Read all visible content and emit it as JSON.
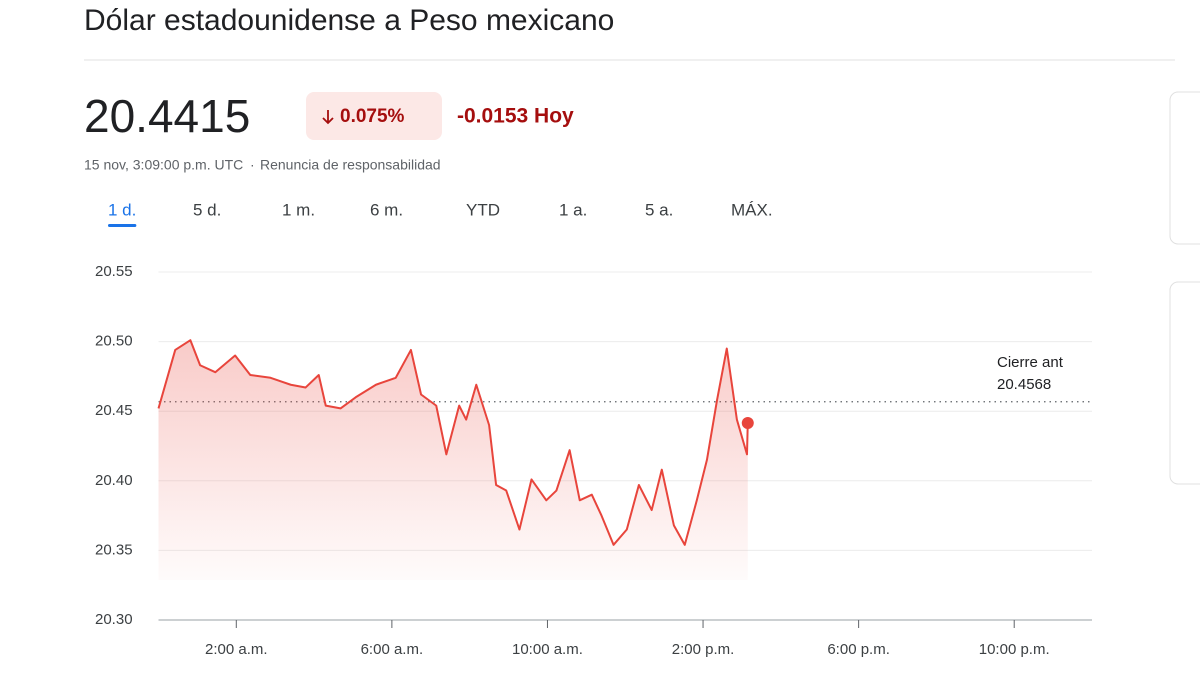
{
  "header": {
    "title": "Dólar estadounidense a Peso mexicano"
  },
  "quote": {
    "price": "20.4415",
    "change_percent": "0.075%",
    "change": "-0.0153 Hoy",
    "timestamp": "15 nov, 3:09:00 p.m. UTC",
    "disclaimer": "Renuncia de responsabilidad"
  },
  "ranges": {
    "items": [
      "1 d.",
      "5 d.",
      "1 m.",
      "6 m.",
      "YTD",
      "1 a.",
      "5 a.",
      "MÁX."
    ],
    "selected": 0
  },
  "chart_data": {
    "type": "line",
    "color": "#e8453c",
    "x": [
      0,
      0.43,
      0.82,
      1.07,
      1.46,
      1.97,
      2.36,
      2.88,
      3.4,
      3.78,
      4.12,
      4.3,
      4.68,
      5.07,
      5.59,
      6.1,
      6.49,
      6.75,
      7.14,
      7.4,
      7.73,
      7.91,
      8.17,
      8.5,
      8.68,
      8.94,
      9.28,
      9.59,
      9.97,
      10.23,
      10.57,
      10.83,
      11.14,
      11.39,
      11.7,
      12.04,
      12.35,
      12.68,
      12.94,
      13.25,
      13.53,
      13.84,
      14.1,
      14.36,
      14.61,
      14.87,
      15.13,
      15.15
    ],
    "values": [
      20.452,
      20.494,
      20.501,
      20.483,
      20.478,
      20.49,
      20.476,
      20.474,
      20.469,
      20.467,
      20.476,
      20.454,
      20.452,
      20.46,
      20.469,
      20.474,
      20.494,
      20.462,
      20.454,
      20.419,
      20.454,
      20.444,
      20.469,
      20.44,
      20.397,
      20.393,
      20.365,
      20.401,
      20.386,
      20.393,
      20.422,
      20.386,
      20.39,
      20.375,
      20.354,
      20.365,
      20.397,
      20.379,
      20.408,
      20.368,
      20.354,
      20.386,
      20.415,
      20.458,
      20.495,
      20.444,
      20.419,
      20.4415
    ],
    "xlim": [
      0,
      24
    ],
    "ylim": [
      20.3,
      20.55
    ],
    "xticks": [
      {
        "value": 2,
        "label": "2:00 a.m."
      },
      {
        "value": 6,
        "label": "6:00 a.m."
      },
      {
        "value": 10,
        "label": "10:00 a.m."
      },
      {
        "value": 14,
        "label": "2:00 p.m."
      },
      {
        "value": 18,
        "label": "6:00 p.m."
      },
      {
        "value": 22,
        "label": "10:00 p.m."
      }
    ],
    "yticks": [
      {
        "value": 20.3,
        "label": "20.30"
      },
      {
        "value": 20.35,
        "label": "20.35"
      },
      {
        "value": 20.4,
        "label": "20.40"
      },
      {
        "value": 20.45,
        "label": "20.45"
      },
      {
        "value": 20.5,
        "label": "20.50"
      },
      {
        "value": 20.55,
        "label": "20.55"
      }
    ],
    "grid": true,
    "previous_close": {
      "label": "Cierre ant",
      "value": 20.4568
    }
  }
}
